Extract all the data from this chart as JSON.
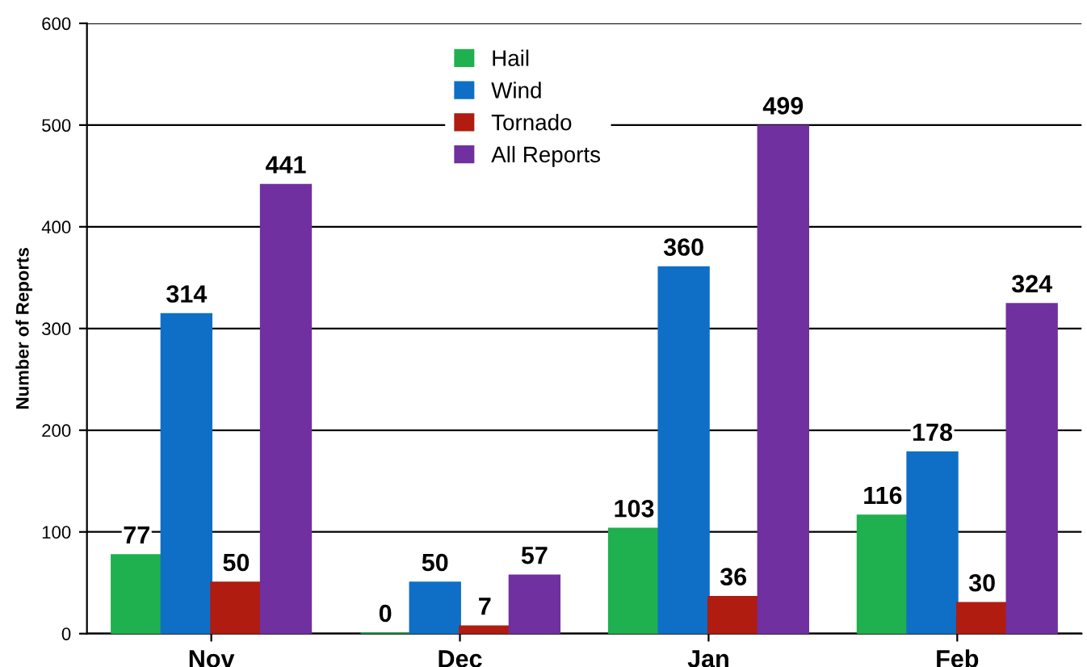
{
  "chart_data": {
    "type": "bar",
    "ylabel": "Number of Reports",
    "categories": [
      "Nov",
      "Dec",
      "Jan",
      "Feb"
    ],
    "series": [
      {
        "name": "Hail",
        "color": "#1fb04f",
        "values": [
          77,
          0,
          103,
          116
        ]
      },
      {
        "name": "Wind",
        "color": "#0f6fc6",
        "values": [
          314,
          50,
          360,
          178
        ]
      },
      {
        "name": "Tornado",
        "color": "#b01c10",
        "values": [
          50,
          7,
          36,
          30
        ]
      },
      {
        "name": "All Reports",
        "color": "#7030a0",
        "values": [
          441,
          57,
          499,
          324
        ]
      }
    ],
    "ylim": [
      0,
      600
    ],
    "yticks": [
      0,
      100,
      200,
      300,
      400,
      500,
      600
    ],
    "grid": "y",
    "legend": "top",
    "data_labels": true
  }
}
